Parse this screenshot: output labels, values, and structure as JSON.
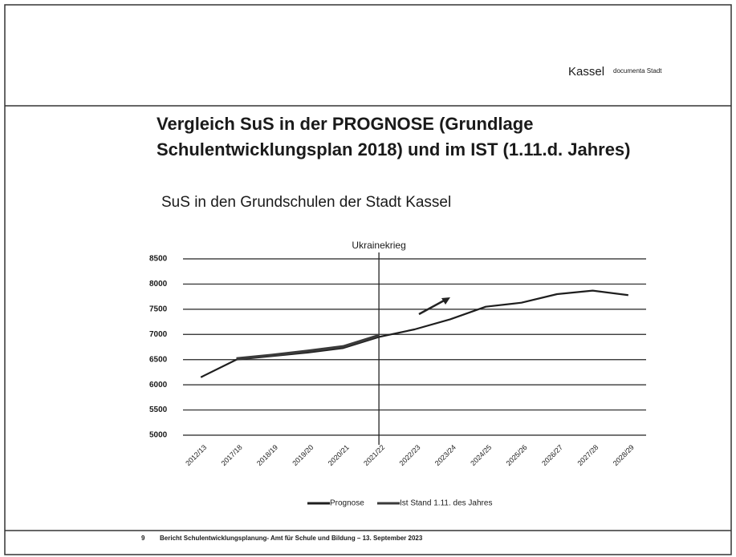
{
  "header": {
    "city": "Kassel",
    "tagline": "documenta Stadt"
  },
  "title": "Vergleich SuS in der PROGNOSE (Grundlage Schulentwicklungsplan 2018) und im IST (1.11.d. Jahres)",
  "footer": {
    "page": "9",
    "text": "Bericht Schulentwicklungsplanung- Amt für Schule und Bildung – 13. September 2023"
  },
  "chart_data": {
    "type": "line",
    "title": "SuS in den Grundschulen der Stadt Kassel",
    "categories": [
      "2012/13",
      "2017/18",
      "2018/19",
      "2019/20",
      "2020/21",
      "2021/22",
      "2022/23",
      "2023/24",
      "2024/25",
      "2025/26",
      "2026/27",
      "2027/28",
      "2028/29"
    ],
    "series": [
      {
        "name": "Prognose",
        "color": "#1e1e1e",
        "values": [
          6150,
          6500,
          6570,
          6640,
          6730,
          6950,
          7100,
          7300,
          7550,
          7630,
          7800,
          7870,
          7780
        ]
      },
      {
        "name": "Ist Stand 1.11. des Jahres",
        "color": "#3a3a3a",
        "values": [
          null,
          6520,
          6590,
          6670,
          6760,
          6980,
          null,
          null,
          null,
          null,
          null,
          null,
          null
        ]
      }
    ],
    "annotation": {
      "text": "Ukrainekrieg",
      "x": "2021/22"
    },
    "ylim": [
      5000,
      8500
    ],
    "yticks": [
      5000,
      5500,
      6000,
      6500,
      7000,
      7500,
      8000,
      8500
    ],
    "grid": true,
    "legend": "bottom"
  }
}
